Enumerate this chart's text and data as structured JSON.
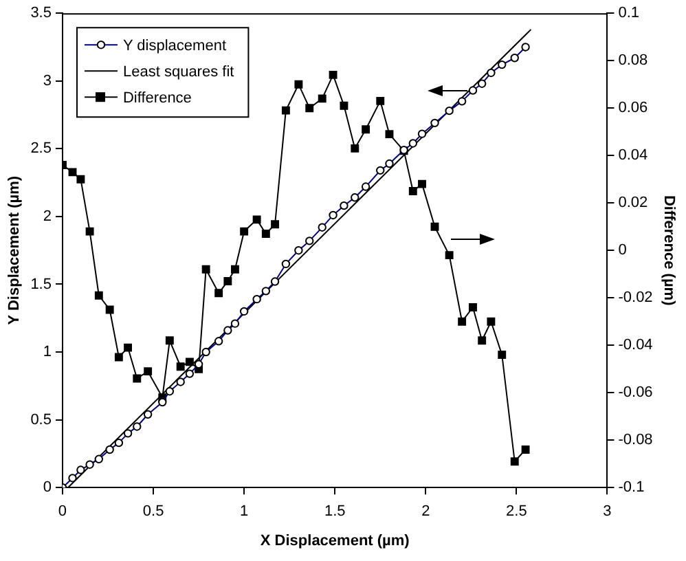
{
  "chart_data": {
    "type": "line",
    "xlabel": "X Displacement (µm)",
    "ylabel": "Y Displacement (µm)",
    "y2label": "Difference (µm)",
    "xlim": [
      0,
      3
    ],
    "xticks": [
      0,
      0.5,
      1,
      1.5,
      2,
      2.5,
      3
    ],
    "ylim": [
      0,
      3.5
    ],
    "yticks": [
      0,
      0.5,
      1,
      1.5,
      2,
      2.5,
      3,
      3.5
    ],
    "y2lim": [
      -0.1,
      0.1
    ],
    "y2ticks": [
      -0.1,
      -0.08,
      -0.06,
      -0.04,
      -0.02,
      0,
      0.02,
      0.04,
      0.06,
      0.08,
      0.1
    ],
    "legend": "top left",
    "series": [
      {
        "name": "Y displacement",
        "color": "#000080",
        "marker": "circle",
        "x": [
          0,
          0.055,
          0.1,
          0.15,
          0.2,
          0.26,
          0.31,
          0.36,
          0.41,
          0.47,
          0.55,
          0.59,
          0.65,
          0.7,
          0.75,
          0.79,
          0.86,
          0.91,
          0.95,
          1,
          1.07,
          1.12,
          1.17,
          1.23,
          1.3,
          1.36,
          1.43,
          1.49,
          1.55,
          1.61,
          1.67,
          1.75,
          1.8,
          1.88,
          1.93,
          1.98,
          2.05,
          2.13,
          2.2,
          2.26,
          2.31,
          2.36,
          2.42,
          2.49,
          2.55
        ],
        "values": [
          0,
          0.07,
          0.13,
          0.17,
          0.21,
          0.28,
          0.33,
          0.4,
          0.45,
          0.54,
          0.63,
          0.71,
          0.78,
          0.84,
          0.91,
          1,
          1.08,
          1.16,
          1.21,
          1.3,
          1.39,
          1.45,
          1.52,
          1.65,
          1.75,
          1.82,
          1.92,
          2.01,
          2.08,
          2.14,
          2.22,
          2.34,
          2.39,
          2.49,
          2.54,
          2.61,
          2.69,
          2.78,
          2.85,
          2.93,
          2.98,
          3.06,
          3.12,
          3.17,
          3.25
        ]
      },
      {
        "name": "Least squares fit",
        "color": "#000000",
        "marker": "none",
        "x": [
          0.03,
          2.58
        ],
        "values": [
          0,
          3.38
        ]
      },
      {
        "name": "Difference",
        "axis": "y2",
        "color": "#000000",
        "marker": "square",
        "x": [
          0,
          0.055,
          0.1,
          0.15,
          0.2,
          0.26,
          0.31,
          0.36,
          0.41,
          0.47,
          0.55,
          0.59,
          0.65,
          0.7,
          0.75,
          0.79,
          0.86,
          0.91,
          0.95,
          1,
          1.07,
          1.12,
          1.17,
          1.23,
          1.3,
          1.36,
          1.43,
          1.49,
          1.55,
          1.61,
          1.67,
          1.75,
          1.8,
          1.88,
          1.93,
          1.98,
          2.05,
          2.13,
          2.2,
          2.26,
          2.31,
          2.36,
          2.42,
          2.49,
          2.55
        ],
        "values": [
          0.036,
          0.033,
          0.03,
          0.008,
          -0.019,
          -0.025,
          -0.045,
          -0.041,
          -0.054,
          -0.051,
          -0.062,
          -0.038,
          -0.049,
          -0.047,
          -0.05,
          -0.008,
          -0.018,
          -0.013,
          -0.008,
          0.008,
          0.013,
          0.007,
          0.011,
          0.059,
          0.07,
          0.06,
          0.064,
          0.074,
          0.061,
          0.043,
          0.051,
          0.063,
          0.049,
          0.042,
          0.025,
          0.028,
          0.01,
          -0.002,
          -0.03,
          -0.024,
          -0.038,
          -0.03,
          -0.044,
          -0.089,
          -0.084
        ]
      }
    ]
  }
}
